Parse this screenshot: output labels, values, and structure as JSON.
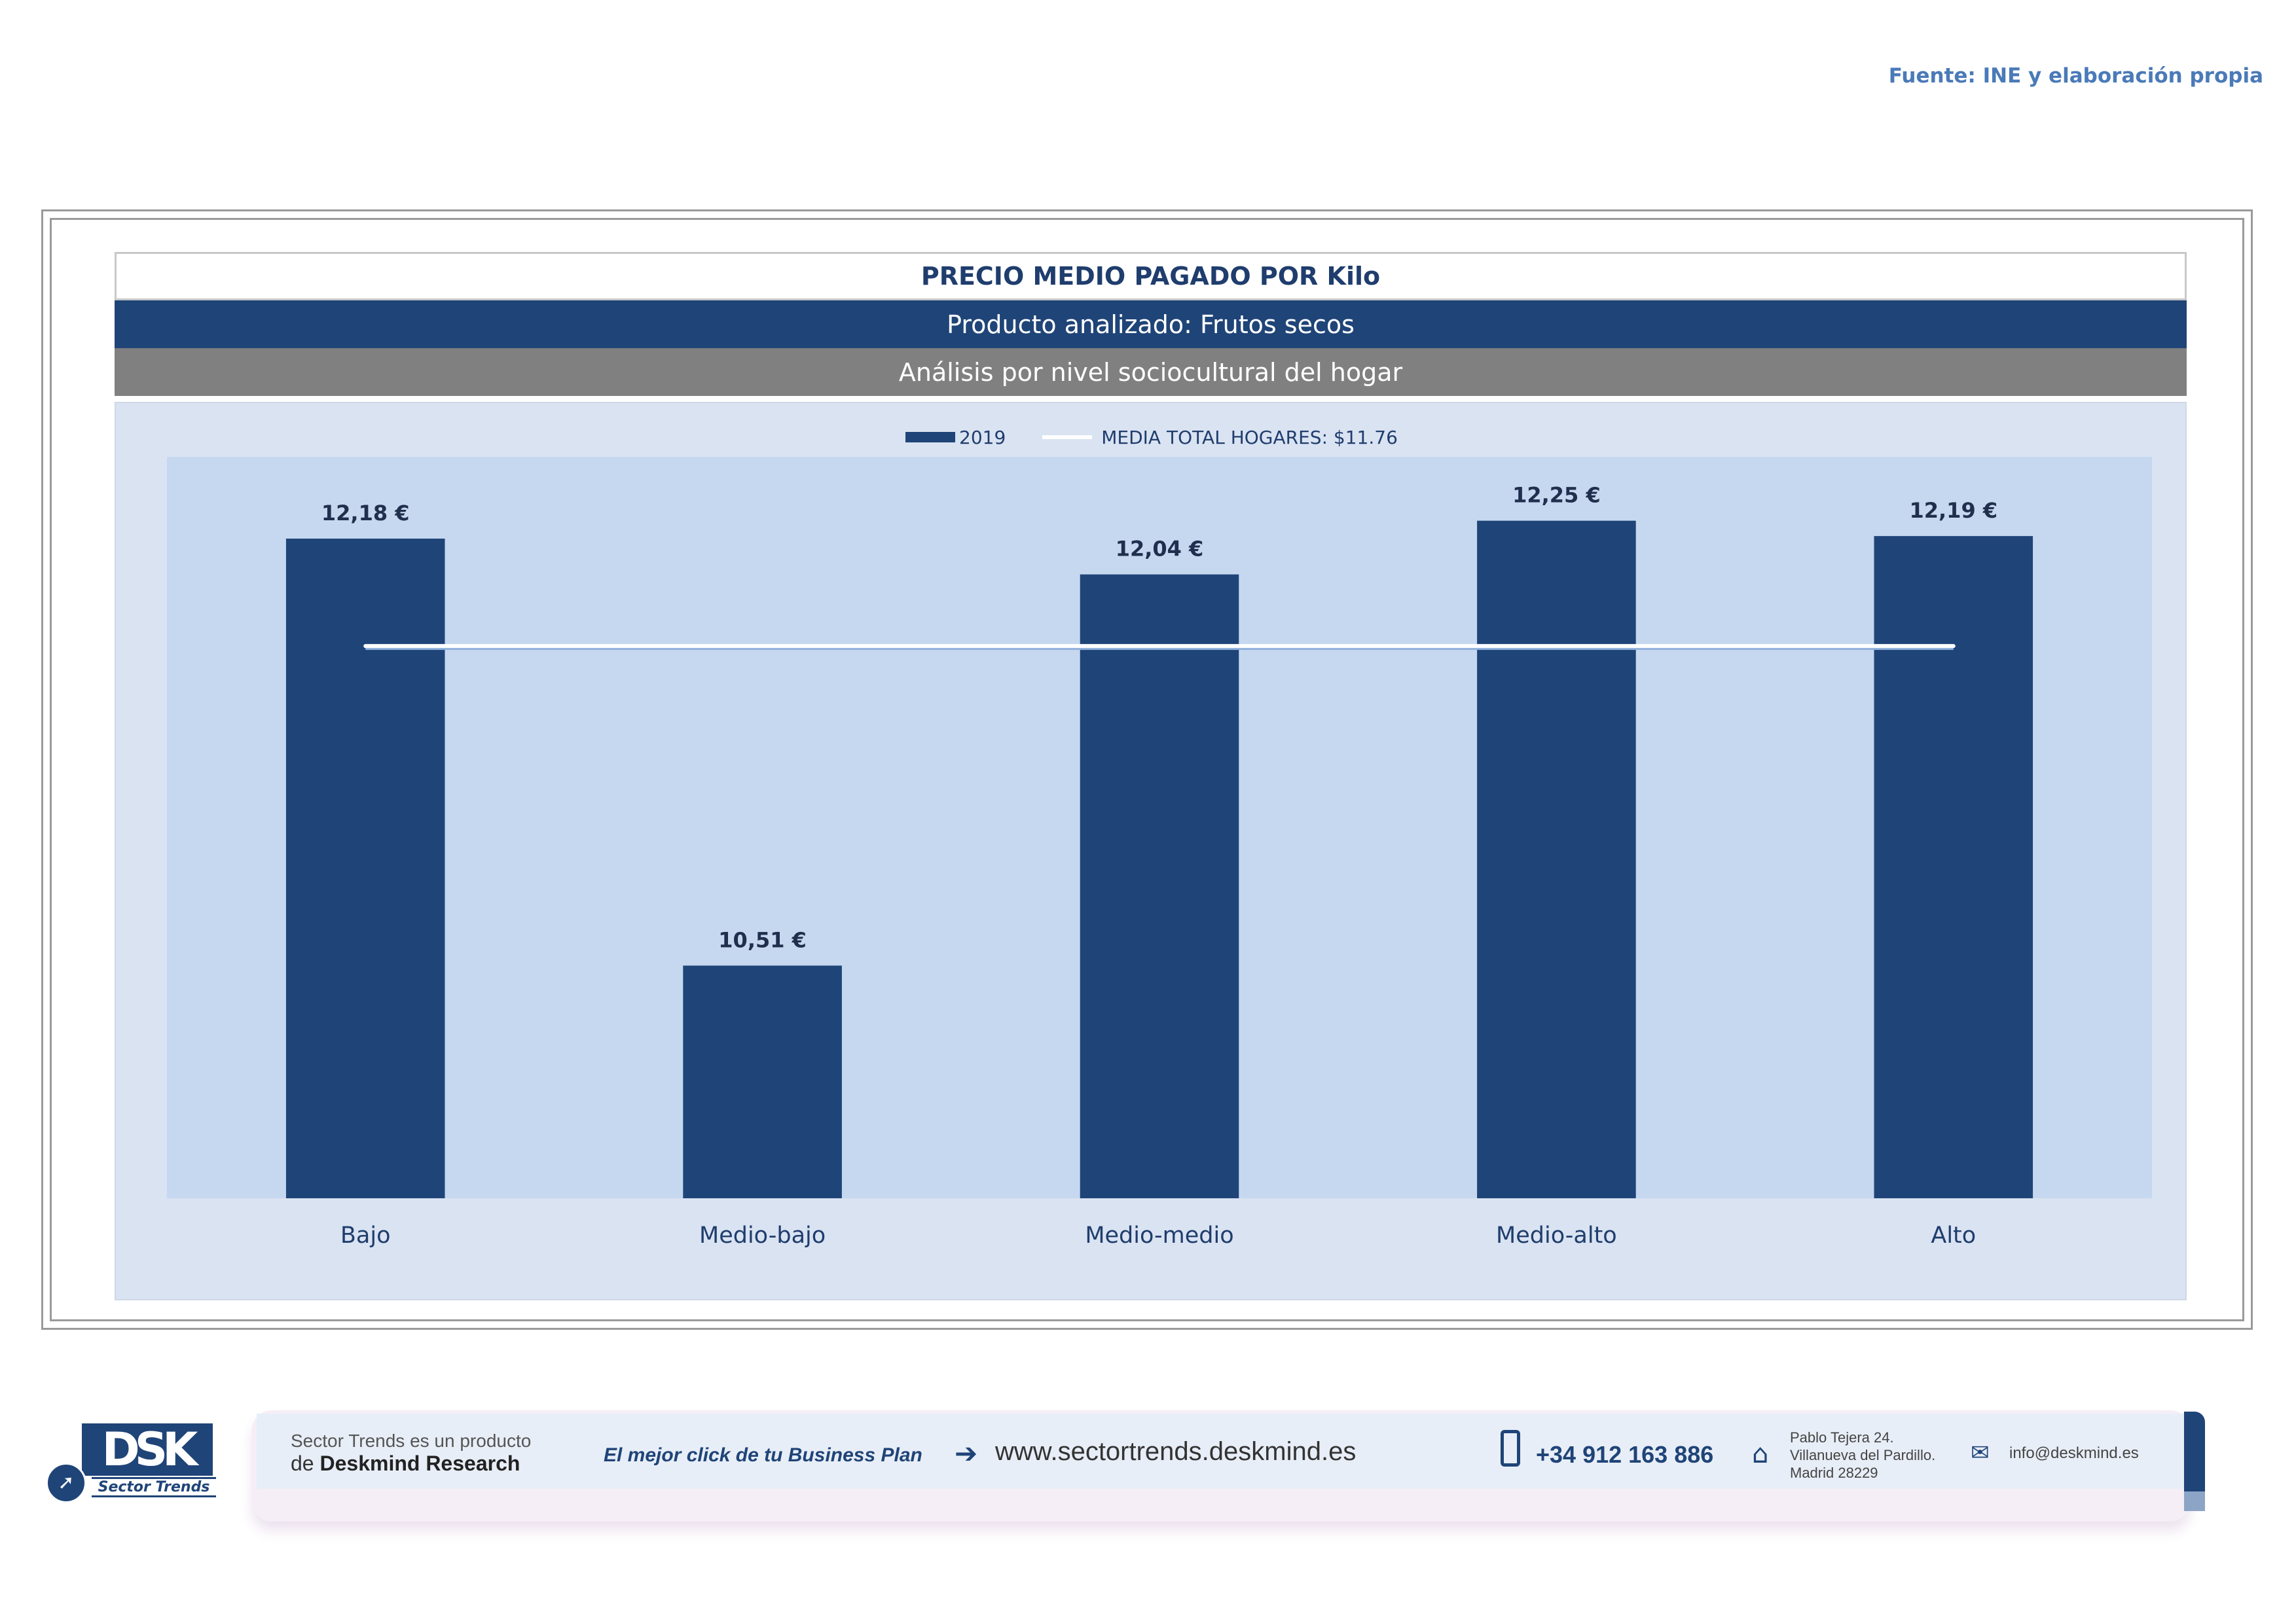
{
  "source": "Fuente: INE y elaboración propia",
  "header": {
    "title": "PRECIO MEDIO PAGADO POR Kilo",
    "product": "Producto analizado: Frutos secos",
    "analysis": "Análisis por nivel sociocultural del hogar"
  },
  "legend": {
    "series_label": "2019",
    "line_label": "MEDIA TOTAL  HOGARES:  $11.76"
  },
  "chart_data": {
    "type": "bar",
    "categories": [
      "Bajo",
      "Medio-bajo",
      "Medio-medio",
      "Medio-alto",
      "Alto"
    ],
    "series": [
      {
        "name": "2019",
        "values": [
          12.18,
          10.51,
          12.04,
          12.25,
          12.19
        ]
      }
    ],
    "data_labels": [
      "12,18 €",
      "10,51 €",
      "12,04 €",
      "12,25 €",
      "12,19 €"
    ],
    "reference_line": {
      "name": "MEDIA TOTAL  HOGARES:  $11.76",
      "value": 11.76
    },
    "ylim": [
      9.6,
      12.5
    ],
    "legend_position": "top-center",
    "grid": false,
    "colors": {
      "bar": "#1f4478",
      "plot_bg": "#c6d8ef",
      "area_bg": "#dae3f2",
      "line": "#ffffff",
      "line_shadow": "#8fb0dc"
    }
  },
  "footer": {
    "logo_text": "DSK",
    "logo_sub": "Sector Trends",
    "line1": "Sector Trends es un producto",
    "line2_prefix": "de",
    "line2_brand": "Deskmind Research",
    "slogan": "El mejor click de tu Business Plan",
    "website": "www.sectortrends.deskmind.es",
    "phone": "+34 912 163 886",
    "address_line1": "Pablo Tejera 24.",
    "address_line2": "Villanueva del Pardillo.",
    "address_line3": "Madrid 28229",
    "email": "info@deskmind.es",
    "icons": [
      "arrow-right-icon",
      "phone-icon",
      "home-icon",
      "mail-icon"
    ]
  }
}
